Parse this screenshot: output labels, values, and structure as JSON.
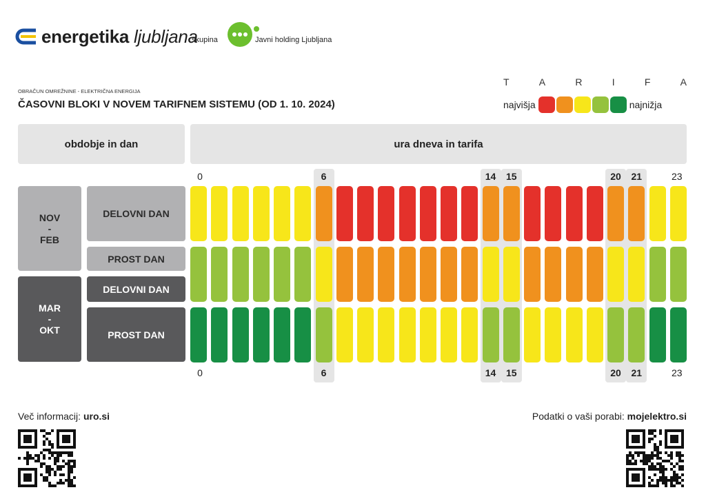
{
  "header": {
    "brand_bold": "energetika",
    "brand_light": "ljubljana",
    "group_label": "skupina",
    "holding_name": "Javni holding Ljubljana"
  },
  "doc": {
    "subtitle": "OBRAČUN OMREŽNINE - ELEKTRIČNA ENERGIJA",
    "title": "ČASOVNI BLOKI V NOVEM TARIFNEM SISTEMU (OD 1. 10. 2024)"
  },
  "legend": {
    "letters": [
      "T",
      "A",
      "R",
      "I",
      "F",
      "A"
    ],
    "highest": "najvišja",
    "lowest": "najnižja",
    "colors": [
      "#e4312b",
      "#f0911e",
      "#f7e61a",
      "#95c23d",
      "#178f45"
    ]
  },
  "table": {
    "left_header": "obdobje in dan",
    "right_header": "ura dneva in tarifa",
    "periods": [
      {
        "label_top": "NOV",
        "label_mid": "-",
        "label_bot": "FEB"
      },
      {
        "label_top": "MAR",
        "label_mid": "-",
        "label_bot": "OKT"
      }
    ],
    "rows": [
      {
        "label": "DELOVNI DAN",
        "tariffs": [
          3,
          3,
          3,
          3,
          3,
          3,
          2,
          1,
          1,
          1,
          1,
          1,
          1,
          1,
          2,
          2,
          1,
          1,
          1,
          1,
          2,
          2,
          3,
          3
        ]
      },
      {
        "label": "PROST DAN",
        "tariffs": [
          4,
          4,
          4,
          4,
          4,
          4,
          3,
          2,
          2,
          2,
          2,
          2,
          2,
          2,
          3,
          3,
          2,
          2,
          2,
          2,
          3,
          3,
          4,
          4
        ]
      },
      {
        "label": "DELOVNI DAN",
        "tariffs": [
          4,
          4,
          4,
          4,
          4,
          4,
          3,
          2,
          2,
          2,
          2,
          2,
          2,
          2,
          3,
          3,
          2,
          2,
          2,
          2,
          3,
          3,
          4,
          4
        ]
      },
      {
        "label": "PROST DAN",
        "tariffs": [
          5,
          5,
          5,
          5,
          5,
          5,
          4,
          3,
          3,
          3,
          3,
          3,
          3,
          3,
          4,
          4,
          3,
          3,
          3,
          3,
          4,
          4,
          5,
          5
        ]
      }
    ],
    "hour_labels": [
      {
        "hour": 0,
        "text": "0",
        "bold": false
      },
      {
        "hour": 6,
        "text": "6",
        "bold": true
      },
      {
        "hour": 14,
        "text": "14",
        "bold": true
      },
      {
        "hour": 15,
        "text": "15",
        "bold": true
      },
      {
        "hour": 20,
        "text": "20",
        "bold": true
      },
      {
        "hour": 21,
        "text": "21",
        "bold": true
      },
      {
        "hour": 23,
        "text": "23",
        "bold": false
      }
    ],
    "highlight_hours": [
      6,
      14,
      15,
      20,
      21
    ]
  },
  "footer": {
    "left_prefix": "Več informacij: ",
    "left_link": "uro.si",
    "right_prefix": "Podatki o vaši porabi: ",
    "right_link": "mojelektro.si"
  }
}
